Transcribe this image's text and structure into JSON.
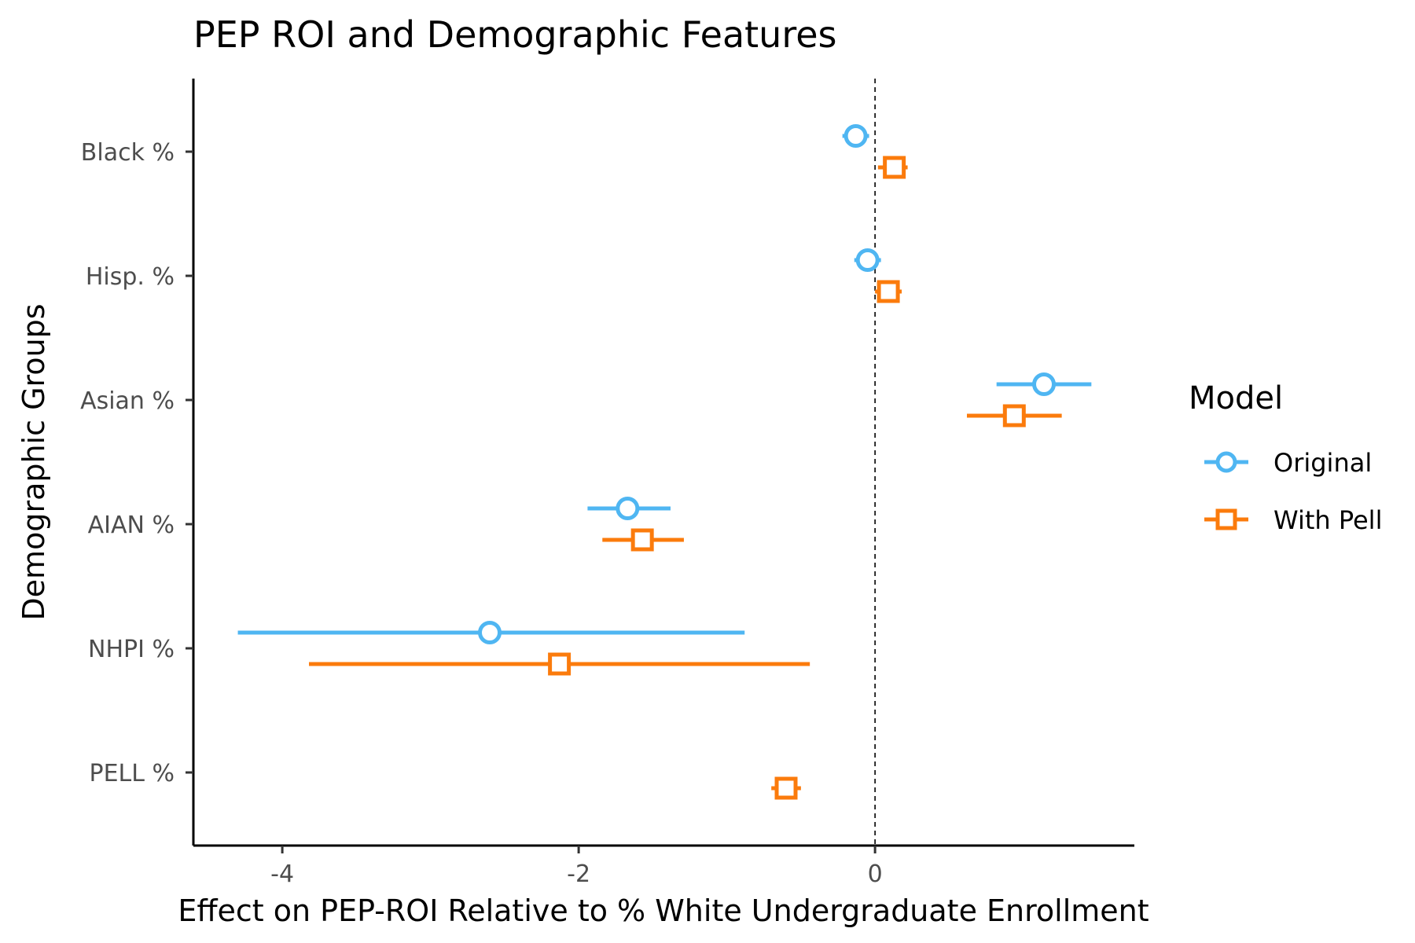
{
  "chart_data": {
    "type": "scatter",
    "title": "PEP ROI and Demographic Features",
    "xlabel": "Effect on PEP-ROI Relative to % White Undergraduate Enrollment",
    "ylabel": "Demographic Groups",
    "xlim": [
      -4.6,
      1.75
    ],
    "x_ticks": [
      -4,
      -2,
      0
    ],
    "x_tick_labels": [
      "-4",
      "-2",
      "0"
    ],
    "reference_line_x": 0,
    "categories": [
      "Black %",
      "Hisp. %",
      "Asian %",
      "AIAN %",
      "NHPI %",
      "PELL %"
    ],
    "legend": {
      "title": "Model",
      "placement": "right"
    },
    "series": [
      {
        "name": "Original",
        "color": "#4fb6f2",
        "marker": "circle",
        "points": [
          {
            "category": "Black %",
            "estimate": -0.13,
            "low": -0.22,
            "high": -0.04
          },
          {
            "category": "Hisp. %",
            "estimate": -0.05,
            "low": -0.14,
            "high": 0.04
          },
          {
            "category": "Asian %",
            "estimate": 1.14,
            "low": 0.82,
            "high": 1.46
          },
          {
            "category": "AIAN %",
            "estimate": -1.67,
            "low": -1.94,
            "high": -1.38
          },
          {
            "category": "NHPI %",
            "estimate": -2.6,
            "low": -4.3,
            "high": -0.88
          }
        ]
      },
      {
        "name": "With Pell",
        "color": "#fb7b0c",
        "marker": "square",
        "points": [
          {
            "category": "Black %",
            "estimate": 0.13,
            "low": 0.02,
            "high": 0.22
          },
          {
            "category": "Hisp. %",
            "estimate": 0.09,
            "low": 0.0,
            "high": 0.18
          },
          {
            "category": "Asian %",
            "estimate": 0.94,
            "low": 0.62,
            "high": 1.26
          },
          {
            "category": "AIAN %",
            "estimate": -1.57,
            "low": -1.84,
            "high": -1.29
          },
          {
            "category": "NHPI %",
            "estimate": -2.13,
            "low": -3.82,
            "high": -0.44
          },
          {
            "category": "PELL %",
            "estimate": -0.6,
            "low": -0.7,
            "high": -0.5
          }
        ]
      }
    ]
  }
}
